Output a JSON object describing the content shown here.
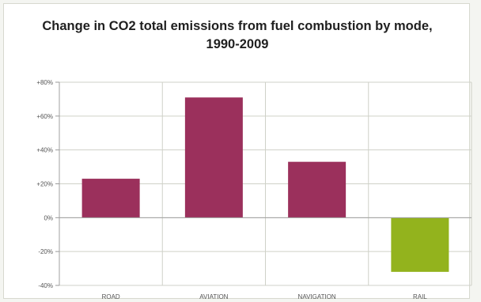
{
  "chart_data": {
    "type": "bar",
    "title": "Change in CO2 total emissions from fuel combustion by mode,",
    "subtitle": "1990-2009",
    "categories": [
      "ROAD",
      "AVIATION",
      "NAVIGATION",
      "RAIL"
    ],
    "values": [
      23,
      71,
      33,
      -32
    ],
    "bar_colors": [
      "#9b305c",
      "#9b305c",
      "#9b305c",
      "#93b31d"
    ],
    "yticks": [
      "+80%",
      "+60%",
      "+40%",
      "+20%",
      "0%",
      "-20%",
      "-40%"
    ],
    "ylim": [
      -40,
      80
    ],
    "grid": true,
    "legend": "none",
    "xlabel": "",
    "ylabel": ""
  }
}
